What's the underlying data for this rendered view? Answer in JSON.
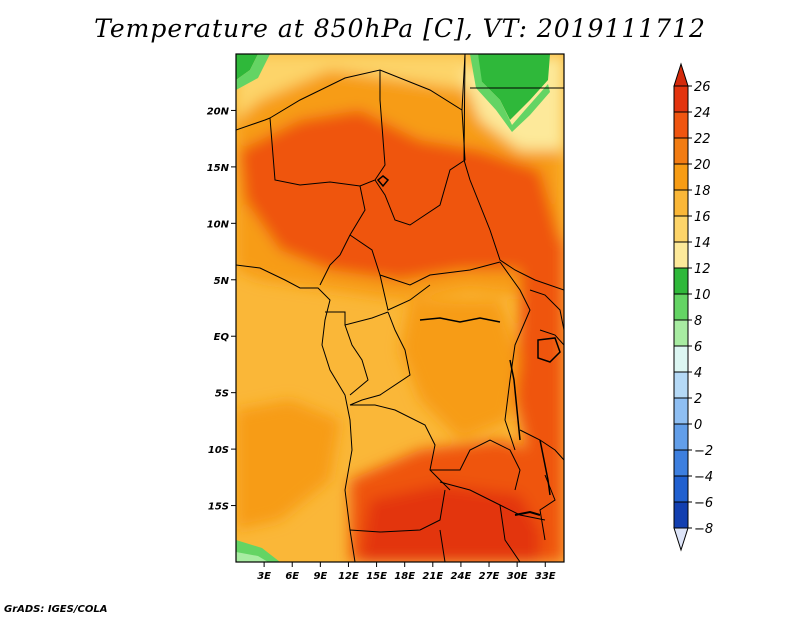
{
  "title": "Temperature at 850hPa [C], VT: 2019111712",
  "credit": "GrADS: IGES/COLA",
  "map": {
    "lon_range": [
      0,
      35
    ],
    "lat_range": [
      -20,
      25
    ],
    "lat_ticks": [
      {
        "value": 20,
        "label": "20N"
      },
      {
        "value": 15,
        "label": "15N"
      },
      {
        "value": 10,
        "label": "10N"
      },
      {
        "value": 5,
        "label": "5N"
      },
      {
        "value": 0,
        "label": "EQ"
      },
      {
        "value": -5,
        "label": "5S"
      },
      {
        "value": -10,
        "label": "10S"
      },
      {
        "value": -15,
        "label": "15S"
      }
    ],
    "lon_ticks": [
      {
        "value": 3,
        "label": "3E"
      },
      {
        "value": 6,
        "label": "6E"
      },
      {
        "value": 9,
        "label": "9E"
      },
      {
        "value": 12,
        "label": "12E"
      },
      {
        "value": 15,
        "label": "15E"
      },
      {
        "value": 18,
        "label": "18E"
      },
      {
        "value": 21,
        "label": "21E"
      },
      {
        "value": 24,
        "label": "24E"
      },
      {
        "value": 27,
        "label": "27E"
      },
      {
        "value": 30,
        "label": "30E"
      },
      {
        "value": 33,
        "label": "33E"
      }
    ]
  },
  "colorbar": {
    "levels": [
      26,
      24,
      22,
      20,
      18,
      16,
      14,
      12,
      10,
      8,
      6,
      4,
      2,
      0,
      -2,
      -4,
      -6,
      -8
    ],
    "labels": [
      "26",
      "24",
      "22",
      "20",
      "18",
      "16",
      "14",
      "12",
      "10",
      "8",
      "6",
      "4",
      "2",
      "0",
      "−2",
      "−4",
      "−6",
      "−8"
    ],
    "colors": [
      "#e3340e",
      "#ef5510",
      "#f27c12",
      "#f79c14",
      "#fab738",
      "#fdd469",
      "#fde99a",
      "#2fb83a",
      "#64d464",
      "#a8eca2",
      "#dcf6f2",
      "#b5d9f6",
      "#8fbff3",
      "#629ee9",
      "#3d7fdf",
      "#2060d0",
      "#123fb0",
      "#0a1f80",
      "#05105a"
    ],
    "top_color": "#d42a0b",
    "bottom_color": "#dde4f8"
  }
}
